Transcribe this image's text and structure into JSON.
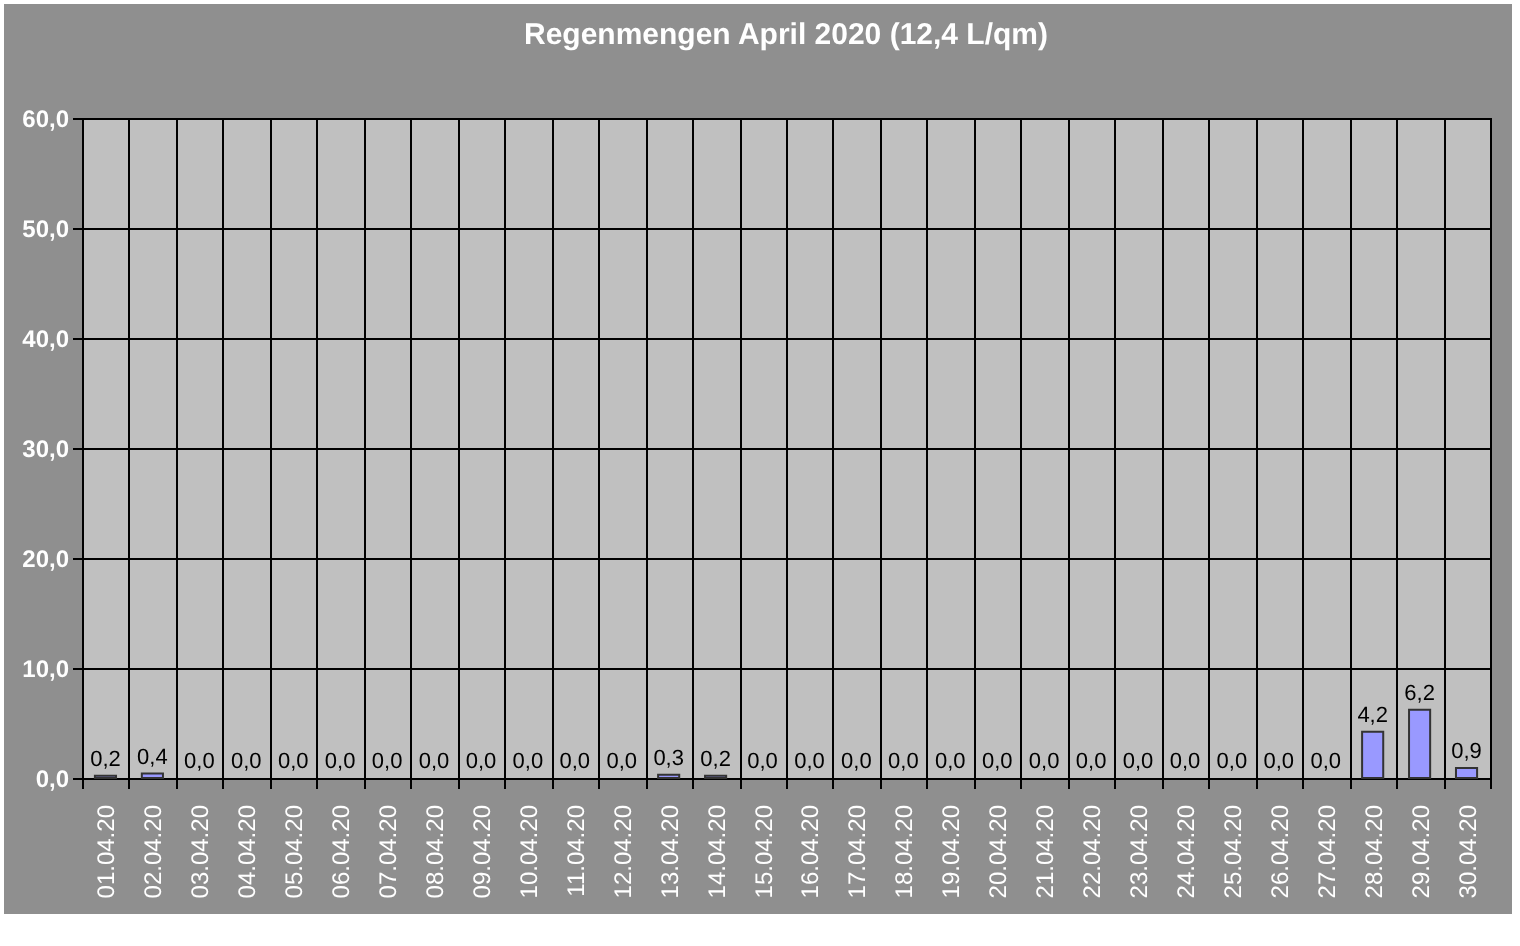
{
  "chart_data": {
    "type": "bar",
    "title": "Regenmengen April 2020 (12,4 L/qm)",
    "categories": [
      "01.04.20",
      "02.04.20",
      "03.04.20",
      "04.04.20",
      "05.04.20",
      "06.04.20",
      "07.04.20",
      "08.04.20",
      "09.04.20",
      "10.04.20",
      "11.04.20",
      "12.04.20",
      "13.04.20",
      "14.04.20",
      "15.04.20",
      "16.04.20",
      "17.04.20",
      "18.04.20",
      "19.04.20",
      "20.04.20",
      "21.04.20",
      "22.04.20",
      "23.04.20",
      "24.04.20",
      "25.04.20",
      "26.04.20",
      "27.04.20",
      "28.04.20",
      "29.04.20",
      "30.04.20"
    ],
    "values": [
      0.2,
      0.4,
      0,
      0,
      0,
      0,
      0,
      0,
      0,
      0,
      0,
      0,
      0.3,
      0.2,
      0,
      0,
      0,
      0,
      0,
      0,
      0,
      0,
      0,
      0,
      0,
      0,
      0,
      4.2,
      6.2,
      0.9
    ],
    "value_labels": [
      "0,2",
      "0,4",
      "0,0",
      "0,0",
      "0,0",
      "0,0",
      "0,0",
      "0,0",
      "0,0",
      "0,0",
      "0,0",
      "0,0",
      "0,3",
      "0,2",
      "0,0",
      "0,0",
      "0,0",
      "0,0",
      "0,0",
      "0,0",
      "0,0",
      "0,0",
      "0,0",
      "0,0",
      "0,0",
      "0,0",
      "0,0",
      "4,2",
      "6,2",
      "0,9"
    ],
    "color": "#9999ff",
    "ylim": [
      0,
      60
    ],
    "yticks": [
      {
        "value": 0,
        "label": "0,0"
      },
      {
        "value": 10,
        "label": "10,0"
      },
      {
        "value": 20,
        "label": "20,0"
      },
      {
        "value": 30,
        "label": "30,0"
      },
      {
        "value": 40,
        "label": "40,0"
      },
      {
        "value": 50,
        "label": "50,0"
      },
      {
        "value": 60,
        "label": "60,0"
      }
    ],
    "grid": true
  }
}
